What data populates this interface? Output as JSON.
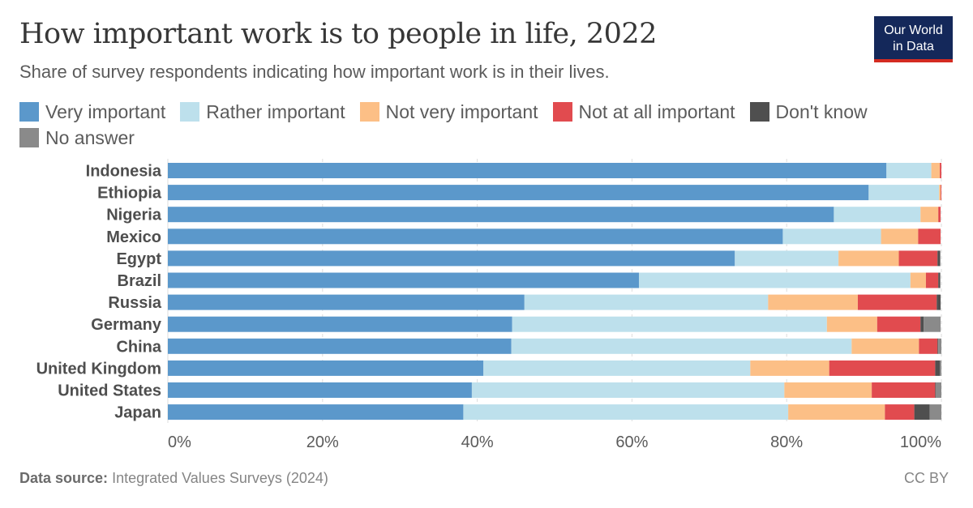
{
  "header": {
    "title": "How important work is to people in life, 2022",
    "subtitle": "Share of survey respondents indicating how important work is in their lives.",
    "logo_line1": "Our World",
    "logo_line2": "in Data"
  },
  "footer": {
    "source_label": "Data source:",
    "source_text": "Integrated Values Surveys (2024)",
    "license": "CC BY"
  },
  "chart_data": {
    "type": "bar",
    "orientation": "horizontal",
    "stacked": true,
    "xlim": [
      0,
      100
    ],
    "x_ticks": [
      "0%",
      "20%",
      "40%",
      "60%",
      "80%",
      "100%"
    ],
    "grid": true,
    "legend_position": "top",
    "categories": [
      "Indonesia",
      "Ethiopia",
      "Nigeria",
      "Mexico",
      "Egypt",
      "Brazil",
      "Russia",
      "Germany",
      "China",
      "United Kingdom",
      "United States",
      "Japan"
    ],
    "series": [
      {
        "name": "Very important",
        "color": "#5b98cb",
        "values": [
          92.9,
          90.6,
          86.1,
          79.5,
          73.3,
          60.9,
          46.1,
          44.5,
          44.4,
          40.8,
          39.3,
          38.2
        ]
      },
      {
        "name": "Rather important",
        "color": "#bde0ec",
        "values": [
          5.8,
          9.1,
          11.2,
          12.7,
          13.4,
          35.1,
          31.5,
          40.7,
          44.0,
          34.5,
          40.4,
          42.0
        ]
      },
      {
        "name": "Not very important",
        "color": "#fcbf86",
        "values": [
          1.1,
          0.2,
          2.3,
          4.8,
          7.8,
          2.0,
          11.6,
          6.5,
          8.7,
          10.2,
          11.3,
          12.5
        ]
      },
      {
        "name": "Not at all important",
        "color": "#e14b4f",
        "values": [
          0.2,
          0.1,
          0.3,
          2.9,
          5.0,
          1.6,
          10.2,
          5.6,
          2.4,
          13.7,
          8.2,
          3.8
        ]
      },
      {
        "name": "Don't know",
        "color": "#4f4f4f",
        "values": [
          0.0,
          0.0,
          0.0,
          0.0,
          0.3,
          0.2,
          0.5,
          0.4,
          0.1,
          0.6,
          0.1,
          2.0
        ]
      },
      {
        "name": "No answer",
        "color": "#8a8a8a",
        "values": [
          0.0,
          0.0,
          0.0,
          0.0,
          0.1,
          0.1,
          0.0,
          2.2,
          0.4,
          0.2,
          0.7,
          1.5
        ]
      }
    ]
  }
}
